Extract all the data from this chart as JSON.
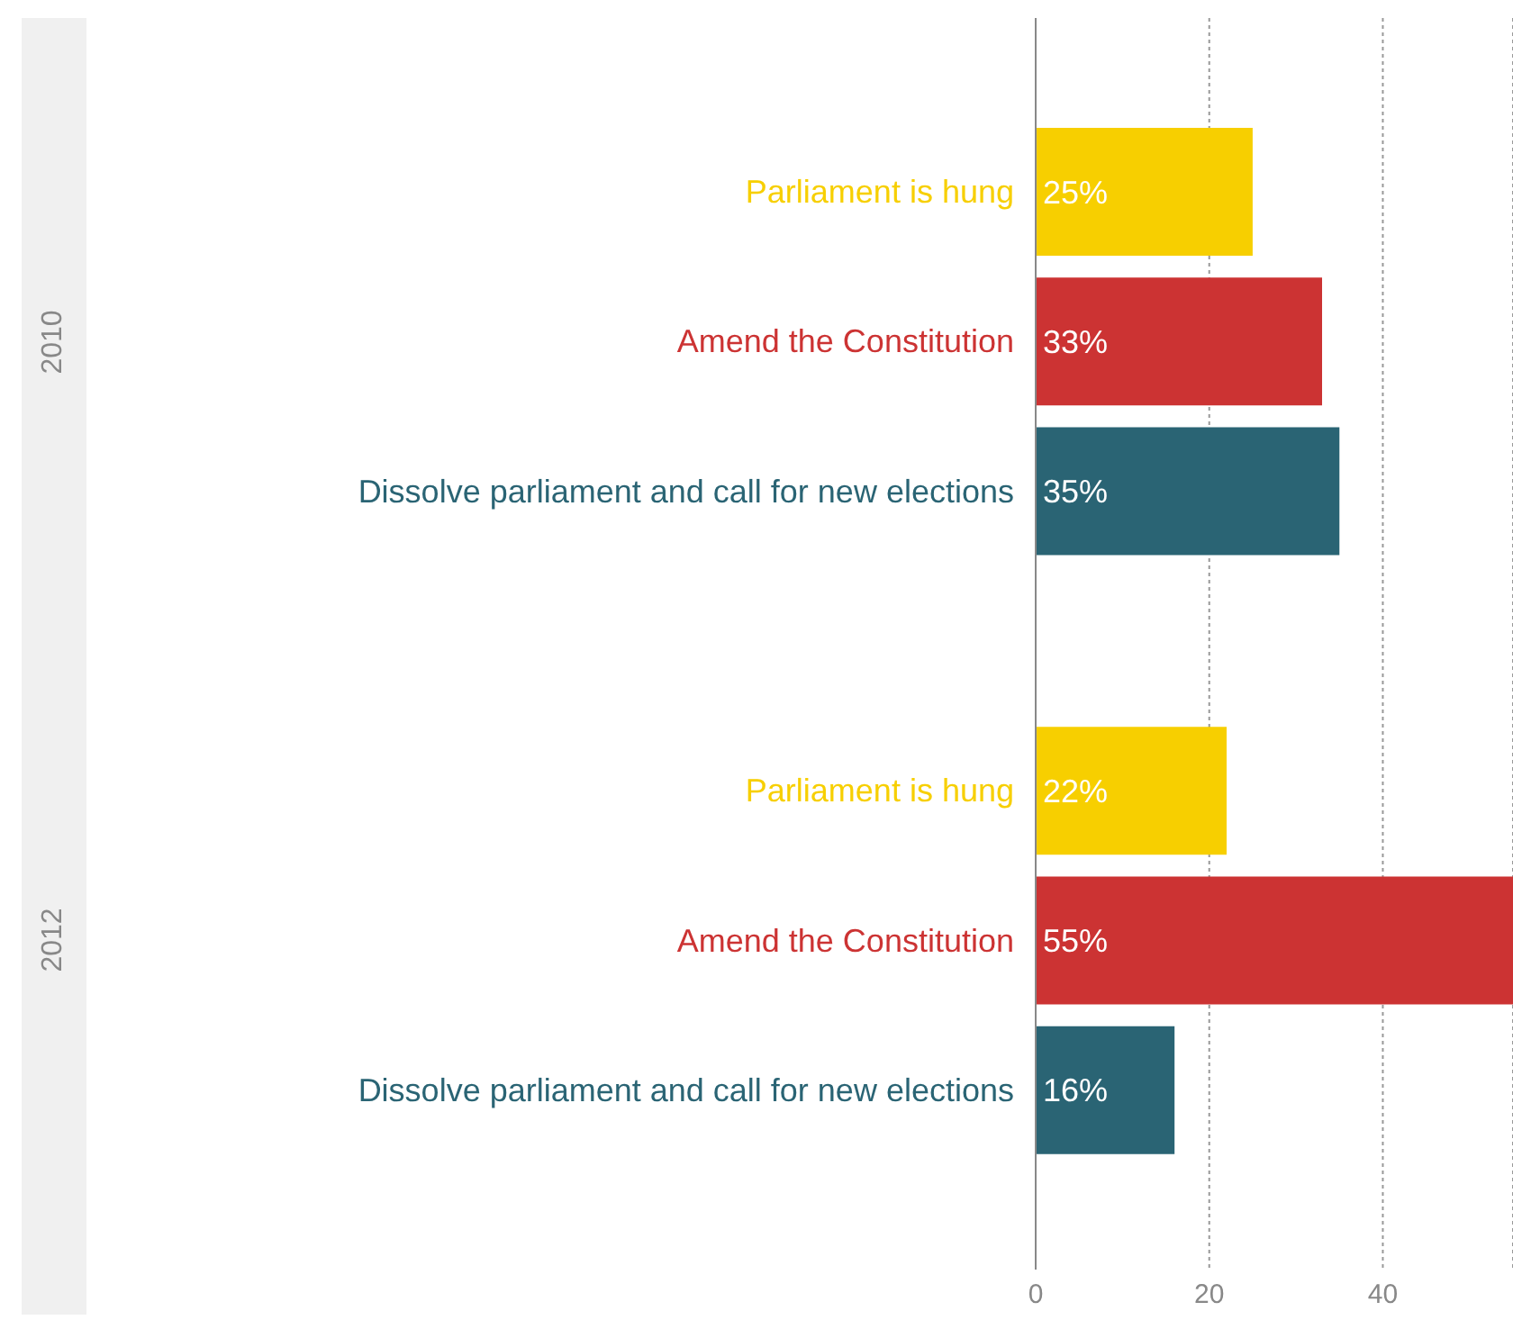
{
  "chart_data": {
    "type": "bar",
    "orientation": "horizontal",
    "categories": [
      "Parliament is hung",
      "Amend the Constitution",
      "Dissolve parliament and call for new elections",
      null,
      "Parliament is hung",
      "Amend the Constitution",
      "Dissolve parliament and call for new elections"
    ],
    "values": [
      25,
      33,
      35,
      null,
      22,
      55,
      16
    ],
    "colors": [
      "#f7cf00",
      "#cc3333",
      "#2a6474",
      "#ffffff",
      "#f7cf00",
      "#cc3333",
      "#2a6474"
    ],
    "value_labels": [
      "25%",
      "33%",
      "35%",
      null,
      "22%",
      "55%",
      "16%"
    ],
    "annotations": [
      "2010",
      "2012"
    ],
    "xlim": [
      0,
      55
    ],
    "xticks": [
      0,
      20,
      40
    ],
    "grid": "x"
  }
}
